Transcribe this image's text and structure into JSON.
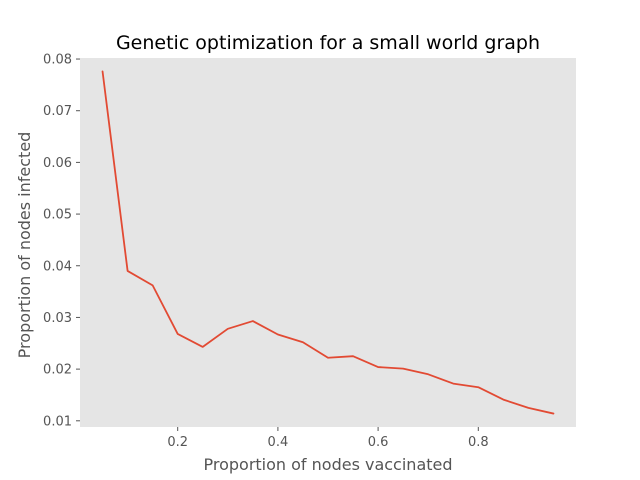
{
  "chart_data": {
    "type": "line",
    "title": "Genetic optimization for a small world graph",
    "xlabel": "Proportion of nodes vaccinated",
    "ylabel": "Proportion of nodes infected",
    "xlim": [
      0.005,
      0.995
    ],
    "ylim": [
      0.0088,
      0.0802
    ],
    "xticks": [
      {
        "value": 0.2,
        "label": "0.2"
      },
      {
        "value": 0.4,
        "label": "0.4"
      },
      {
        "value": 0.6,
        "label": "0.6"
      },
      {
        "value": 0.8,
        "label": "0.8"
      }
    ],
    "yticks": [
      {
        "value": 0.01,
        "label": "0.01"
      },
      {
        "value": 0.02,
        "label": "0.02"
      },
      {
        "value": 0.03,
        "label": "0.03"
      },
      {
        "value": 0.04,
        "label": "0.04"
      },
      {
        "value": 0.05,
        "label": "0.05"
      },
      {
        "value": 0.06,
        "label": "0.06"
      },
      {
        "value": 0.07,
        "label": "0.07"
      },
      {
        "value": 0.08,
        "label": "0.08"
      }
    ],
    "grid": false,
    "plot_background": "#e5e5e5",
    "series": [
      {
        "color": "#e24a33",
        "x": [
          0.05,
          0.1,
          0.15,
          0.2,
          0.25,
          0.3,
          0.35,
          0.4,
          0.45,
          0.5,
          0.55,
          0.6,
          0.65,
          0.7,
          0.75,
          0.8,
          0.85,
          0.9,
          0.95
        ],
        "y": [
          0.0776,
          0.039,
          0.0362,
          0.0268,
          0.0243,
          0.0278,
          0.0293,
          0.0267,
          0.0252,
          0.0222,
          0.0225,
          0.0204,
          0.0201,
          0.019,
          0.0172,
          0.0165,
          0.0141,
          0.0125,
          0.0114
        ]
      }
    ]
  }
}
